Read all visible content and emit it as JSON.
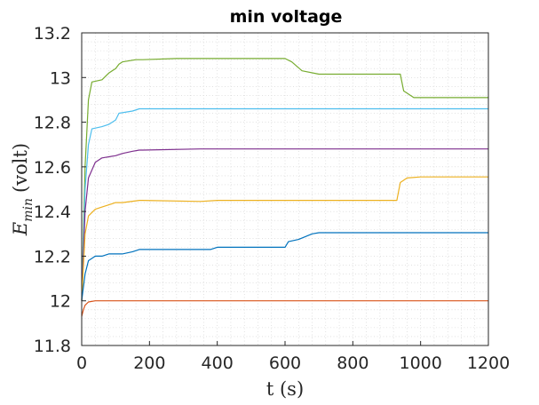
{
  "chart_data": {
    "type": "line",
    "title": "min voltage",
    "xlabel": "t (s)",
    "ylabel": "E_min (volt)",
    "ylabel_main": "E",
    "ylabel_sub": "min",
    "ylabel_unit": "(volt)",
    "xlim": [
      0,
      1200
    ],
    "ylim": [
      11.8,
      13.2
    ],
    "xticks": [
      0,
      200,
      400,
      600,
      800,
      1000,
      1200
    ],
    "yticks": [
      11.8,
      12,
      12.2,
      12.4,
      12.6,
      12.8,
      13,
      13.2
    ],
    "ytick_labels": [
      "11.8",
      "12",
      "12.2",
      "12.4",
      "12.6",
      "12.8",
      "13",
      "13.2"
    ],
    "grid": "minor dotted",
    "series": [
      {
        "color": "#77AC30",
        "x": [
          0,
          10,
          20,
          30,
          60,
          80,
          100,
          110,
          120,
          160,
          180,
          280,
          600,
          620,
          650,
          700,
          940,
          950,
          980,
          1200
        ],
        "y": [
          12.0,
          12.6,
          12.9,
          12.98,
          12.99,
          13.02,
          13.04,
          13.06,
          13.07,
          13.08,
          13.08,
          13.085,
          13.085,
          13.07,
          13.03,
          13.015,
          13.015,
          12.94,
          12.91,
          12.91
        ]
      },
      {
        "color": "#4DBEEE",
        "x": [
          0,
          10,
          20,
          30,
          60,
          80,
          100,
          110,
          150,
          170,
          180,
          250,
          1200
        ],
        "y": [
          12.0,
          12.5,
          12.7,
          12.77,
          12.78,
          12.79,
          12.81,
          12.84,
          12.85,
          12.86,
          12.86,
          12.86,
          12.86
        ]
      },
      {
        "color": "#7E2F8E",
        "x": [
          0,
          10,
          20,
          40,
          60,
          100,
          120,
          150,
          170,
          180,
          350,
          1200
        ],
        "y": [
          12.0,
          12.4,
          12.55,
          12.62,
          12.64,
          12.65,
          12.66,
          12.67,
          12.675,
          12.675,
          12.68,
          12.68
        ]
      },
      {
        "color": "#EDB120",
        "x": [
          0,
          10,
          20,
          40,
          60,
          100,
          120,
          170,
          180,
          350,
          400,
          930,
          940,
          960,
          1000,
          1200
        ],
        "y": [
          12.0,
          12.3,
          12.38,
          12.41,
          12.42,
          12.44,
          12.44,
          12.45,
          12.45,
          12.445,
          12.45,
          12.45,
          12.53,
          12.55,
          12.555,
          12.555
        ]
      },
      {
        "color": "#0072BD",
        "x": [
          0,
          10,
          20,
          40,
          60,
          80,
          120,
          150,
          170,
          180,
          350,
          380,
          400,
          600,
          610,
          640,
          680,
          700,
          1200
        ],
        "y": [
          12.0,
          12.12,
          12.18,
          12.2,
          12.2,
          12.21,
          12.21,
          12.22,
          12.23,
          12.23,
          12.23,
          12.23,
          12.24,
          12.24,
          12.265,
          12.275,
          12.3,
          12.305,
          12.305
        ]
      },
      {
        "color": "#D95319",
        "x": [
          0,
          5,
          10,
          20,
          40,
          60,
          100,
          120,
          170,
          180,
          1200
        ],
        "y": [
          11.93,
          11.96,
          11.98,
          11.995,
          12.0,
          12.0,
          12.0,
          12.0,
          12.0,
          12.0,
          12.0
        ]
      }
    ]
  }
}
